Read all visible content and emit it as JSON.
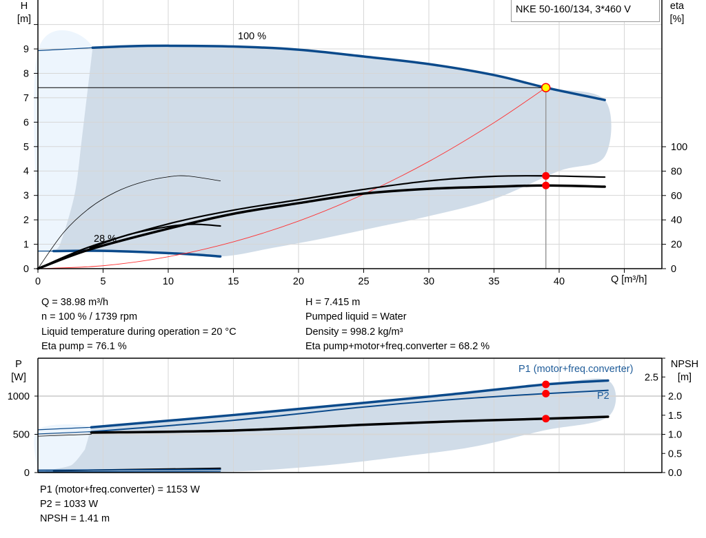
{
  "chart_data": [
    {
      "type": "line",
      "title": "NKE 50-160/134, 3*460 V",
      "xlabel": "Q [m³/h]",
      "ylabel_name": "H",
      "ylabel_unit": "[m]",
      "y2label_name": "eta",
      "y2label_unit": "[%]",
      "xlim": [
        0,
        48
      ],
      "ylim": [
        0,
        11
      ],
      "y2lim": [
        0,
        220
      ],
      "xticks": [
        0,
        5,
        10,
        15,
        20,
        25,
        30,
        35,
        40
      ],
      "yticks": [
        0,
        1,
        2,
        3,
        4,
        5,
        6,
        7,
        8,
        9
      ],
      "y2ticks": [
        0,
        20,
        40,
        60,
        80,
        100
      ],
      "grid": true,
      "colors": {
        "curve": "#0b4a8b",
        "shade": "#d0dce8",
        "shade_light": "#edf5fd",
        "system": "#ff3030",
        "marker": "#ff0000",
        "duty": "#ffff00"
      },
      "regions": [
        {
          "fill": "light",
          "points": [
            [
              0,
              0.72
            ],
            [
              0,
              8.93
            ],
            [
              4.2,
              9.05
            ],
            [
              3.3,
              5
            ],
            [
              2.8,
              3
            ],
            [
              1.7,
              1
            ],
            [
              1.2,
              0.72
            ]
          ]
        },
        {
          "fill": "dark",
          "points": [
            [
              4.2,
              9.05
            ],
            [
              10,
              9.13
            ],
            [
              15,
              9.1
            ],
            [
              20,
              8.95
            ],
            [
              25,
              8.69
            ],
            [
              30,
              8.38
            ],
            [
              35,
              7.93
            ],
            [
              38.98,
              7.415
            ],
            [
              43.5,
              6.91
            ],
            [
              43.5,
              4.6
            ],
            [
              40,
              4.0
            ],
            [
              35,
              2.85
            ],
            [
              30,
              2.15
            ],
            [
              26,
              1.7
            ],
            [
              22,
              1.25
            ],
            [
              18,
              0.85
            ],
            [
              14,
              0.5
            ],
            [
              9,
              0.65
            ],
            [
              4,
              0.72
            ],
            [
              1.2,
              0.72
            ],
            [
              1.7,
              1
            ],
            [
              2.8,
              3
            ],
            [
              3.3,
              5
            ]
          ]
        }
      ],
      "series": [
        {
          "name": "100 %",
          "axis": "y",
          "style": "thick-blue",
          "points": [
            [
              4.2,
              9.05
            ],
            [
              7,
              9.11
            ],
            [
              10,
              9.13
            ],
            [
              15,
              9.1
            ],
            [
              20,
              8.97
            ],
            [
              25,
              8.69
            ],
            [
              30,
              8.38
            ],
            [
              35,
              7.93
            ],
            [
              38.98,
              7.415
            ],
            [
              43.5,
              6.91
            ]
          ]
        },
        {
          "axis": "y",
          "style": "thin-blue",
          "points": [
            [
              0,
              8.93
            ],
            [
              4.2,
              9.05
            ]
          ]
        },
        {
          "name": "28 %",
          "axis": "y",
          "style": "thick-blue",
          "points": [
            [
              1.2,
              0.72
            ],
            [
              5,
              0.73
            ],
            [
              9,
              0.66
            ],
            [
              12,
              0.58
            ],
            [
              14,
              0.5
            ]
          ]
        },
        {
          "axis": "y",
          "style": "thin-blue",
          "points": [
            [
              0,
              0.72
            ],
            [
              1.2,
              0.72
            ]
          ]
        },
        {
          "axis": "y",
          "style": "system",
          "points": [
            [
              0,
              0
            ],
            [
              5,
              0.12
            ],
            [
              10,
              0.49
            ],
            [
              15,
              1.1
            ],
            [
              20,
              1.95
            ],
            [
              25,
              3.05
            ],
            [
              30,
              4.39
            ],
            [
              35,
              5.98
            ],
            [
              38.98,
              7.415
            ]
          ]
        },
        {
          "axis": "y2",
          "style": "thick-black",
          "points": [
            [
              0,
              0
            ],
            [
              4,
              18
            ],
            [
              10,
              36.7
            ],
            [
              15,
              48
            ],
            [
              20,
              56.5
            ],
            [
              25,
              65
            ],
            [
              30,
              72
            ],
            [
              35,
              75.7
            ],
            [
              38.98,
              76.1
            ],
            [
              43.5,
              75.1
            ]
          ]
        },
        {
          "axis": "y2",
          "style": "xthick-black",
          "points": [
            [
              0,
              0
            ],
            [
              4,
              15.8
            ],
            [
              10,
              32.8
            ],
            [
              15,
              45
            ],
            [
              20,
              53.7
            ],
            [
              25,
              61.6
            ],
            [
              30,
              65.5
            ],
            [
              35,
              67.2
            ],
            [
              38.98,
              68.2
            ],
            [
              43.5,
              67.2
            ]
          ]
        },
        {
          "axis": "y2",
          "style": "thin-black",
          "points": [
            [
              0,
              0
            ],
            [
              2,
              30
            ],
            [
              4,
              50
            ],
            [
              6,
              63
            ],
            [
              8,
              71
            ],
            [
              10,
              75.3
            ],
            [
              11.5,
              76
            ],
            [
              14,
              72
            ]
          ]
        },
        {
          "axis": "y2",
          "style": "thick-black",
          "points": [
            [
              4,
              17
            ],
            [
              7,
              28
            ],
            [
              10,
              34.5
            ],
            [
              12,
              36.4
            ],
            [
              14,
              35
            ]
          ]
        }
      ],
      "duty_point": {
        "Q": 38.98,
        "H": 7.415
      },
      "markers": [
        {
          "axis": "y2",
          "Q": 38.98,
          "value": 76.1
        },
        {
          "axis": "y2",
          "Q": 38.98,
          "value": 68.2
        }
      ],
      "labels": {
        "curve_100": "100 %",
        "curve_28": "28 %"
      }
    },
    {
      "type": "line",
      "ylabel_name": "P",
      "ylabel_unit": "[W]",
      "y2label_name": "NPSH",
      "y2label_unit": "[m]",
      "xlim": [
        0,
        48
      ],
      "ylim": [
        0,
        1500
      ],
      "y2lim": [
        0,
        3
      ],
      "xticks": [
        5,
        10,
        15,
        20,
        25,
        30,
        35,
        40,
        45
      ],
      "yticks": [
        0,
        500,
        1000
      ],
      "y2ticks": [
        "0.0",
        "0.5",
        "1.0",
        "1.5",
        "2.0",
        "2.5"
      ],
      "grid": true,
      "regions": [
        {
          "fill": "light",
          "points": [
            [
              0,
              0
            ],
            [
              0,
              560
            ],
            [
              4.1,
              592
            ],
            [
              3.6,
              300
            ],
            [
              2.6,
              100
            ],
            [
              1.2,
              0
            ]
          ]
        },
        {
          "fill": "dark",
          "points": [
            [
              4.1,
              592
            ],
            [
              15.1,
              754
            ],
            [
              24.9,
              910
            ],
            [
              31.8,
              1024
            ],
            [
              38.98,
              1153
            ],
            [
              43.75,
              1204
            ],
            [
              43.75,
              730
            ],
            [
              38.8,
              550
            ],
            [
              33.5,
              340
            ],
            [
              28.4,
              219
            ],
            [
              21.4,
              84
            ],
            [
              14,
              9
            ],
            [
              1.2,
              0
            ],
            [
              2.6,
              100
            ],
            [
              3.6,
              300
            ]
          ]
        }
      ],
      "series": [
        {
          "name": "P1 (motor+freq.converter)",
          "axis": "y",
          "style": "thick-blue",
          "points": [
            [
              4.1,
              592
            ],
            [
              15.1,
              754
            ],
            [
              24.9,
              910
            ],
            [
              31.8,
              1024
            ],
            [
              38.98,
              1153
            ],
            [
              43.75,
              1204
            ]
          ]
        },
        {
          "axis": "y",
          "style": "thin-blue",
          "points": [
            [
              0,
              560
            ],
            [
              4.1,
              592
            ]
          ]
        },
        {
          "name": "P2",
          "axis": "y",
          "style": "medium-blue",
          "points": [
            [
              4.1,
              535
            ],
            [
              15.1,
              685
            ],
            [
              24.9,
              856
            ],
            [
              31.8,
              955
            ],
            [
              38.98,
              1033
            ],
            [
              43.75,
              1075
            ]
          ]
        },
        {
          "axis": "y",
          "style": "thin-blue",
          "points": [
            [
              0,
              505
            ],
            [
              4.1,
              535
            ]
          ]
        },
        {
          "axis": "y2",
          "style": "xthick-black",
          "points": [
            [
              4.1,
              1.045
            ],
            [
              15,
              1.1
            ],
            [
              25,
              1.25
            ],
            [
              32,
              1.34
            ],
            [
              38.98,
              1.41
            ],
            [
              43.75,
              1.46
            ]
          ]
        },
        {
          "axis": "y2",
          "style": "thin-black",
          "points": [
            [
              0,
              0.95
            ],
            [
              4.1,
              1.0
            ]
          ]
        },
        {
          "axis": "y2",
          "style": "thick-black",
          "points": [
            [
              1.2,
              0.05
            ],
            [
              14,
              0.11
            ]
          ]
        },
        {
          "axis": "y",
          "style": "medium-blue",
          "points": [
            [
              0,
              30
            ],
            [
              14,
              40
            ]
          ]
        },
        {
          "axis": "y",
          "style": "thin-blue",
          "points": [
            [
              0,
              10
            ],
            [
              14,
              15
            ]
          ]
        }
      ],
      "markers": [
        {
          "axis": "y",
          "Q": 38.98,
          "value": 1153
        },
        {
          "axis": "y",
          "Q": 38.98,
          "value": 1033
        },
        {
          "axis": "y2",
          "Q": 38.98,
          "value": 1.41
        }
      ]
    }
  ],
  "info": {
    "left": [
      "Q = 38.98 m³/h",
      "n = 100 % / 1739 rpm",
      "Liquid temperature during operation = 20 °C",
      "Eta pump = 76.1 %"
    ],
    "right": [
      "H = 7.415 m",
      "Pumped liquid = Water",
      "Density = 998.2 kg/m³",
      "Eta pump+motor+freq.converter = 68.2 %"
    ],
    "bottom": [
      "P1 (motor+freq.converter) = 1153 W",
      "P2 = 1033 W",
      "NPSH = 1.41 m"
    ]
  }
}
